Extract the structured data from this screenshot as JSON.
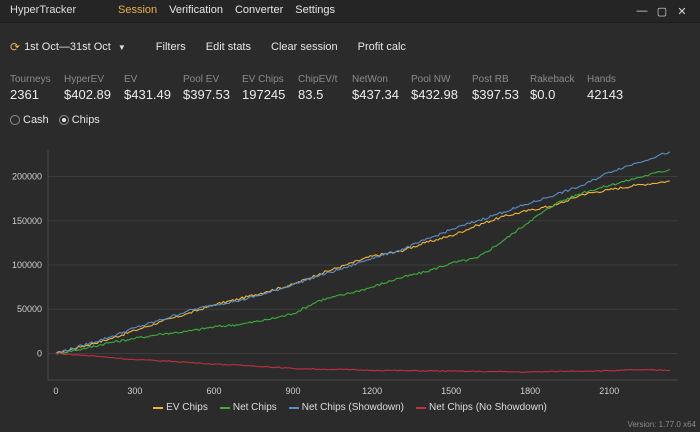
{
  "app": {
    "title": "HyperTracker"
  },
  "nav": [
    "Session",
    "Verification",
    "Converter",
    "Settings"
  ],
  "window_controls": {
    "minimize": "—",
    "maximize": "▢",
    "close": "✕"
  },
  "toolbar": {
    "date_range": "1st Oct—31st Oct",
    "buttons": [
      "Filters",
      "Edit stats",
      "Clear session",
      "Profit calc"
    ]
  },
  "stats": [
    {
      "label": "Tourneys",
      "value": "2361"
    },
    {
      "label": "HyperEV",
      "value": "$402.89"
    },
    {
      "label": "EV",
      "value": "$431.49"
    },
    {
      "label": "Pool EV",
      "value": "$397.53"
    },
    {
      "label": "EV Chips",
      "value": "197245"
    },
    {
      "label": "ChipEV/t",
      "value": "83.5"
    },
    {
      "label": "NetWon",
      "value": "$437.34"
    },
    {
      "label": "Pool NW",
      "value": "$432.98"
    },
    {
      "label": "Post RB",
      "value": "$397.53"
    },
    {
      "label": "Rakeback",
      "value": "$0.0"
    },
    {
      "label": "Hands",
      "value": "42143"
    }
  ],
  "mode": {
    "options": [
      "Cash",
      "Chips"
    ],
    "selected": "Chips"
  },
  "version": "Version: 1.77.0 x64",
  "chart_data": {
    "type": "line",
    "x_ticks": [
      0,
      300,
      600,
      900,
      1200,
      1500,
      1800,
      2100
    ],
    "y_ticks": [
      0,
      50000,
      100000,
      150000,
      200000
    ],
    "xlim": [
      -30,
      2361
    ],
    "ylim": [
      -30000,
      230000
    ],
    "grid": true,
    "legend_position": "bottom",
    "series": [
      {
        "name": "EV Chips",
        "color": "#f0b43a",
        "x": [
          0,
          100,
          200,
          300,
          400,
          500,
          600,
          700,
          800,
          900,
          1000,
          1100,
          1200,
          1300,
          1400,
          1500,
          1600,
          1700,
          1800,
          1900,
          2000,
          2100,
          2200,
          2330
        ],
        "y": [
          0,
          8000,
          16000,
          26000,
          36000,
          45000,
          55000,
          62000,
          70000,
          78000,
          90000,
          100000,
          110000,
          115000,
          125000,
          133000,
          145000,
          155000,
          162000,
          168000,
          180000,
          185000,
          190000,
          195000
        ]
      },
      {
        "name": "Net Chips",
        "color": "#3cae3c",
        "x": [
          0,
          100,
          200,
          300,
          400,
          500,
          600,
          700,
          800,
          900,
          1000,
          1100,
          1200,
          1300,
          1400,
          1500,
          1600,
          1700,
          1800,
          1900,
          2000,
          2100,
          2200,
          2330
        ],
        "y": [
          0,
          5000,
          12000,
          17000,
          22000,
          25000,
          30000,
          33000,
          38000,
          45000,
          60000,
          67000,
          75000,
          85000,
          92000,
          102000,
          108000,
          128000,
          150000,
          170000,
          182000,
          190000,
          198000,
          208000
        ]
      },
      {
        "name": "Net Chips (Showdown)",
        "color": "#5b8fc9",
        "x": [
          0,
          100,
          200,
          300,
          400,
          500,
          600,
          700,
          800,
          900,
          1000,
          1100,
          1200,
          1300,
          1400,
          1500,
          1600,
          1700,
          1800,
          1900,
          2000,
          2100,
          2200,
          2330
        ],
        "y": [
          0,
          9000,
          18000,
          29000,
          38000,
          48000,
          55000,
          60000,
          68000,
          78000,
          88000,
          97000,
          108000,
          116000,
          128000,
          140000,
          150000,
          160000,
          170000,
          180000,
          190000,
          205000,
          215000,
          228000
        ]
      },
      {
        "name": "Net Chips (No Showdown)",
        "color": "#c0303a",
        "x": [
          0,
          150,
          300,
          450,
          600,
          750,
          900,
          1050,
          1200,
          1350,
          1500,
          1650,
          1800,
          1950,
          2100,
          2200,
          2330
        ],
        "y": [
          0,
          -3000,
          -7000,
          -9000,
          -12000,
          -14000,
          -17000,
          -18000,
          -19000,
          -19500,
          -20000,
          -20500,
          -21000,
          -20000,
          -19500,
          -18500,
          -19000
        ]
      }
    ]
  }
}
